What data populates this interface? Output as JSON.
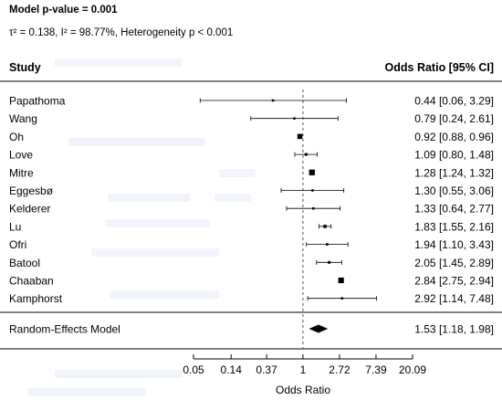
{
  "header": {
    "model_pvalue": "Model p-value = 0.001",
    "heterogeneity": "τ² = 0.138, I² = 98.77%, Heterogeneity p < 0.001"
  },
  "columns": {
    "study": "Study",
    "effect": "Odds Ratio [95% CI]"
  },
  "colors": {
    "text": "#000000",
    "marker": "#000000",
    "ref_line": "#555555",
    "watermark": "#dfe8f6"
  },
  "chart_data": {
    "type": "forest",
    "x_scale": "log",
    "xlabel": "Odds Ratio",
    "xlim": [
      0.05,
      20.09
    ],
    "xticks": [
      0.05,
      0.14,
      0.37,
      1,
      2.72,
      7.39,
      20.09
    ],
    "xtick_labels": [
      "0.05",
      "0.14",
      "0.37",
      "1",
      "2.72",
      "7.39",
      "20.09"
    ],
    "reference_line": 1,
    "studies": [
      {
        "name": "Papathoma",
        "or": 0.44,
        "lo": 0.06,
        "hi": 3.29,
        "label": "0.44 [0.06, 3.29]"
      },
      {
        "name": "Wang",
        "or": 0.79,
        "lo": 0.24,
        "hi": 2.61,
        "label": "0.79 [0.24, 2.61]"
      },
      {
        "name": "Oh",
        "or": 0.92,
        "lo": 0.88,
        "hi": 0.96,
        "label": "0.92 [0.88, 0.96]"
      },
      {
        "name": "Love",
        "or": 1.09,
        "lo": 0.8,
        "hi": 1.48,
        "label": "1.09 [0.80, 1.48]"
      },
      {
        "name": "Mitre",
        "or": 1.28,
        "lo": 1.24,
        "hi": 1.32,
        "label": "1.28 [1.24, 1.32]"
      },
      {
        "name": "Eggesbø",
        "or": 1.3,
        "lo": 0.55,
        "hi": 3.06,
        "label": "1.30 [0.55, 3.06]"
      },
      {
        "name": "Kelderer",
        "or": 1.33,
        "lo": 0.64,
        "hi": 2.77,
        "label": "1.33 [0.64, 2.77]"
      },
      {
        "name": "Lu",
        "or": 1.83,
        "lo": 1.55,
        "hi": 2.16,
        "label": "1.83 [1.55, 2.16]"
      },
      {
        "name": "Ofri",
        "or": 1.94,
        "lo": 1.1,
        "hi": 3.43,
        "label": "1.94 [1.10, 3.43]"
      },
      {
        "name": "Batool",
        "or": 2.05,
        "lo": 1.45,
        "hi": 2.89,
        "label": "2.05 [1.45, 2.89]"
      },
      {
        "name": "Chaaban",
        "or": 2.84,
        "lo": 2.75,
        "hi": 2.94,
        "label": "2.84 [2.75, 2.94]"
      },
      {
        "name": "Kamphorst",
        "or": 2.92,
        "lo": 1.14,
        "hi": 7.48,
        "label": "2.92 [1.14, 7.48]"
      }
    ],
    "summary": {
      "name": "Random-Effects Model",
      "or": 1.53,
      "lo": 1.18,
      "hi": 1.98,
      "label": "1.53 [1.18, 1.98]"
    }
  }
}
